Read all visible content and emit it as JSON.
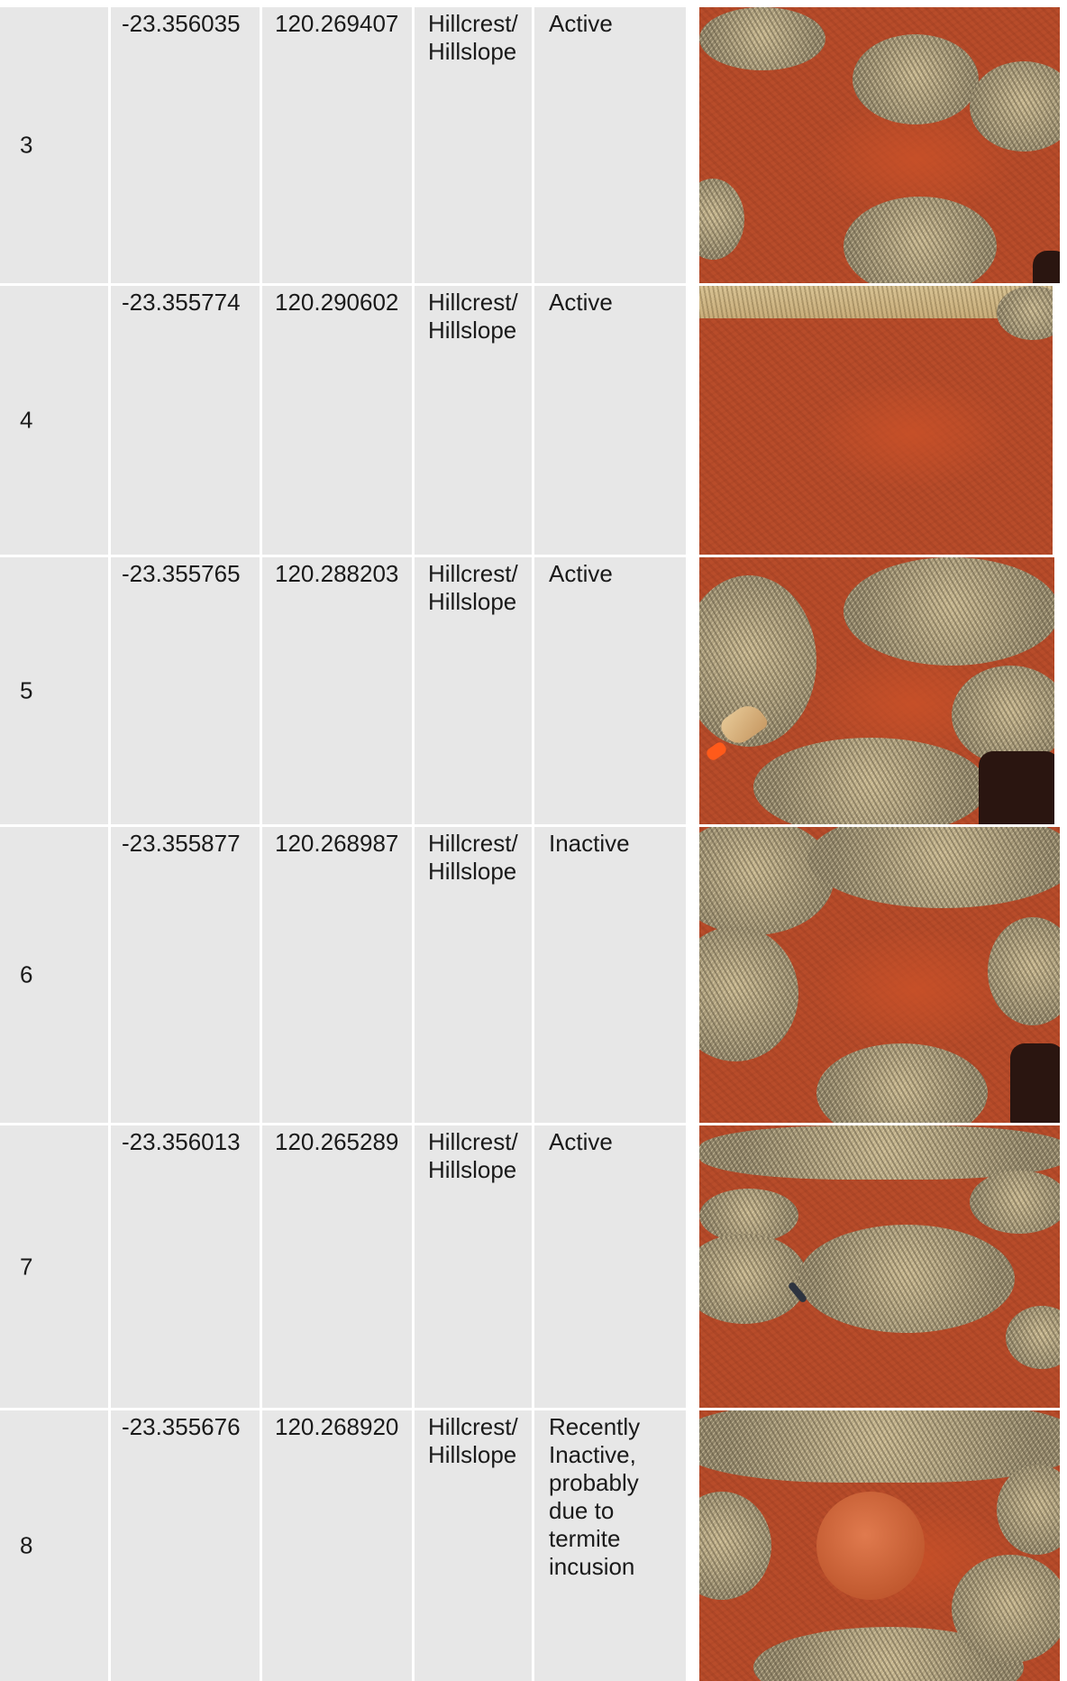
{
  "rows": [
    {
      "id": "3",
      "lat": "-23.356035",
      "lon": "120.269407",
      "landform": "Hillcrest/ Hillslope",
      "status": "Active",
      "photo": "termite-mound-site-photo"
    },
    {
      "id": "4",
      "lat": "-23.355774",
      "lon": "120.290602",
      "landform": "Hillcrest/ Hillslope",
      "status": "Active",
      "photo": "termite-mound-site-photo"
    },
    {
      "id": "5",
      "lat": "-23.355765",
      "lon": "120.288203",
      "landform": "Hillcrest/ Hillslope",
      "status": "Active",
      "photo": "termite-mound-site-photo"
    },
    {
      "id": "6",
      "lat": "-23.355877",
      "lon": "120.268987",
      "landform": "Hillcrest/ Hillslope",
      "status": "Inactive",
      "photo": "termite-mound-site-photo"
    },
    {
      "id": "7",
      "lat": "-23.356013",
      "lon": "120.265289",
      "landform": "Hillcrest/ Hillslope",
      "status": "Active",
      "photo": "termite-mound-site-photo"
    },
    {
      "id": "8",
      "lat": "-23.355676",
      "lon": "120.268920",
      "landform": "Hillcrest/ Hillslope",
      "status": "Recently Inactive, probably due to termite incusion",
      "photo": "termite-mound-site-photo"
    }
  ]
}
